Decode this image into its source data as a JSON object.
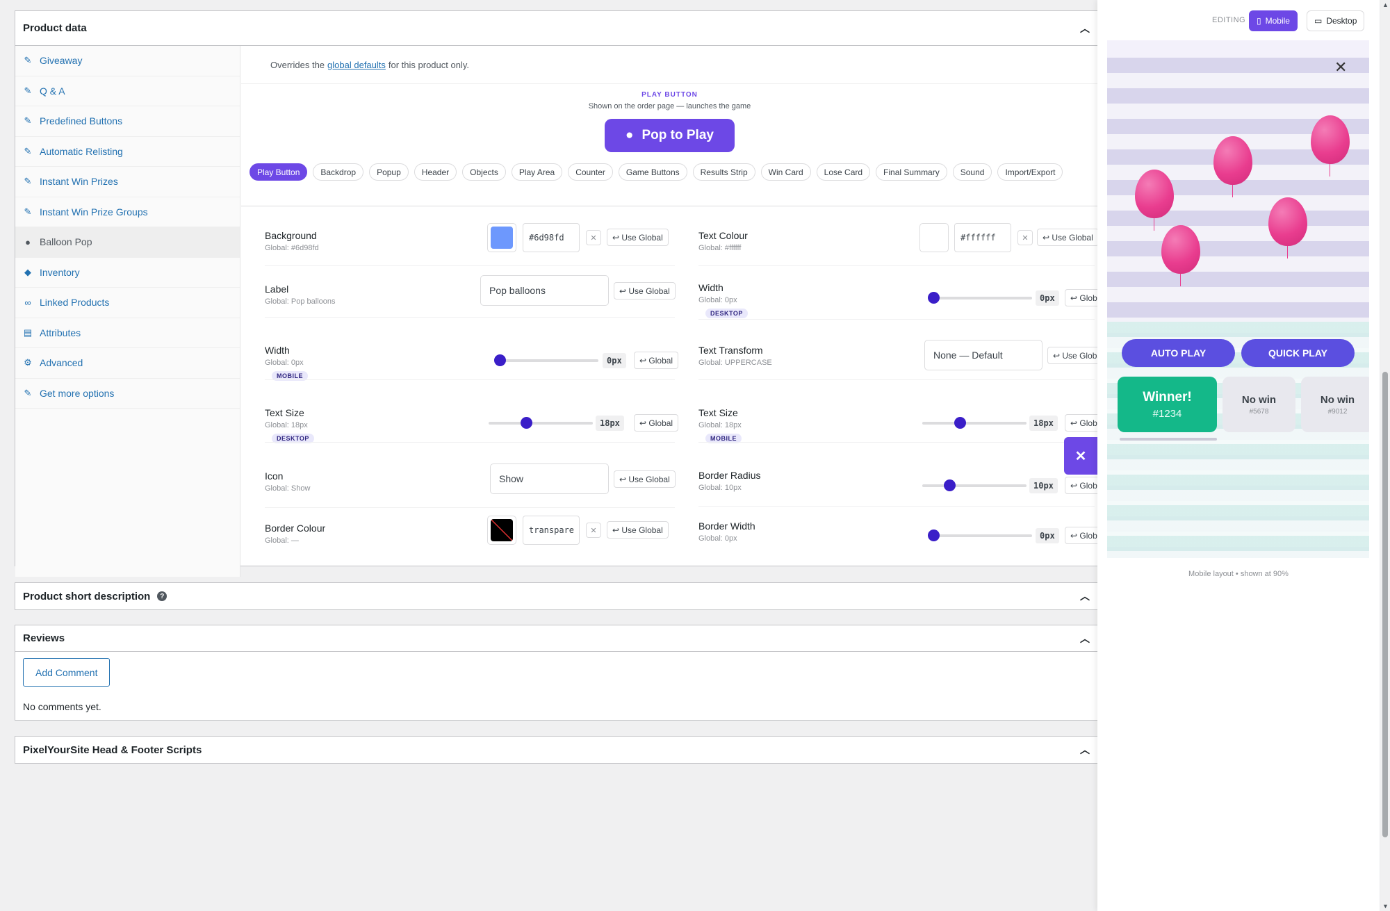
{
  "product_data": {
    "title": "Product data",
    "tabs": [
      {
        "label": "Giveaway",
        "icon": "wand-icon"
      },
      {
        "label": "Q & A",
        "icon": "wand-icon"
      },
      {
        "label": "Predefined Buttons",
        "icon": "wand-icon"
      },
      {
        "label": "Automatic Relisting",
        "icon": "wand-icon"
      },
      {
        "label": "Instant Win Prizes",
        "icon": "wand-icon"
      },
      {
        "label": "Instant Win Prize Groups",
        "icon": "wand-icon"
      },
      {
        "label": "Balloon Pop",
        "icon": "balloon-icon"
      },
      {
        "label": "Inventory",
        "icon": "tag-icon"
      },
      {
        "label": "Linked Products",
        "icon": "link-icon"
      },
      {
        "label": "Attributes",
        "icon": "table-icon"
      },
      {
        "label": "Advanced",
        "icon": "gear-icon"
      },
      {
        "label": "Get more options",
        "icon": "plugin-icon"
      }
    ],
    "override_prefix": "Overrides the",
    "override_link": "global defaults",
    "override_suffix": "for this product only.",
    "play_button": {
      "section_title": "PLAY BUTTON",
      "section_sub": "Shown on the order page — launches the game",
      "preview_label": "Pop to Play"
    },
    "pills": [
      "Play Button",
      "Backdrop",
      "Popup",
      "Header",
      "Objects",
      "Play Area",
      "Counter",
      "Game Buttons",
      "Results Strip",
      "Win Card",
      "Lose Card",
      "Final Summary",
      "Sound",
      "Import/Export"
    ],
    "settings": {
      "background": {
        "label": "Background",
        "global": "Global: #6d98fd",
        "hex": "#6d98fd",
        "swatch": "#6d98fd",
        "button": "↩ Use Global"
      },
      "text_colour": {
        "label": "Text Colour",
        "global": "Global: #ffffff",
        "hex": "#ffffff",
        "swatch": "#ffffff",
        "button": "↩ Use Global"
      },
      "label": {
        "label": "Label",
        "global": "Global: Pop balloons",
        "value": "Pop balloons",
        "button": "↩ Use Global"
      },
      "width_desktop": {
        "label": "Width",
        "global": "Global: 0px",
        "badge": "DESKTOP",
        "value": "0px",
        "button": "↩ Global"
      },
      "width_mobile": {
        "label": "Width",
        "global": "Global: 0px",
        "badge": "MOBILE",
        "value": "0px",
        "button": "↩ Global"
      },
      "text_transform": {
        "label": "Text Transform",
        "global": "Global: UPPERCASE",
        "value": "None — Default",
        "button": "↩ Use Global"
      },
      "text_size_desktop": {
        "label": "Text Size",
        "global": "Global: 18px",
        "badge": "DESKTOP",
        "value": "18px",
        "button": "↩ Global"
      },
      "text_size_mobile": {
        "label": "Text Size",
        "global": "Global: 18px",
        "badge": "MOBILE",
        "value": "18px",
        "button": "↩ Global"
      },
      "icon": {
        "label": "Icon",
        "global": "Global: Show",
        "value": "Show",
        "button": "↩ Use Global"
      },
      "border_radius": {
        "label": "Border Radius",
        "global": "Global: 10px",
        "value": "10px",
        "button": "↩ Global"
      },
      "border_colour": {
        "label": "Border Colour",
        "global": "Global: —",
        "hex": "transpare",
        "button": "↩ Use Global"
      },
      "border_width": {
        "label": "Border Width",
        "global": "Global: 0px",
        "value": "0px",
        "button": "↩ Global"
      }
    }
  },
  "short_description": {
    "title": "Product short description",
    "help_icon": "question-icon"
  },
  "reviews": {
    "title": "Reviews",
    "add_comment": "Add Comment",
    "empty": "No comments yet."
  },
  "pixelyoursite": {
    "title": "PixelYourSite Head & Footer Scripts"
  },
  "preview_panel": {
    "editing_label": "EDITING",
    "mobile_label": "Mobile",
    "desktop_label": "Desktop",
    "auto_play": "AUTO PLAY",
    "quick_play": "QUICK PLAY",
    "cards": [
      {
        "title": "Winner!",
        "number": "#1234"
      },
      {
        "title": "No win",
        "number": "#5678"
      },
      {
        "title": "No win",
        "number": "#9012"
      }
    ],
    "caption": "Mobile layout • shown at 90%",
    "close_symbol": "✕"
  },
  "fab": {
    "symbol": "✕"
  },
  "colors": {
    "accent": "#6d48e6",
    "knob": "#3a1ec8",
    "win": "#14b889",
    "balloon": "#e93d8f"
  }
}
